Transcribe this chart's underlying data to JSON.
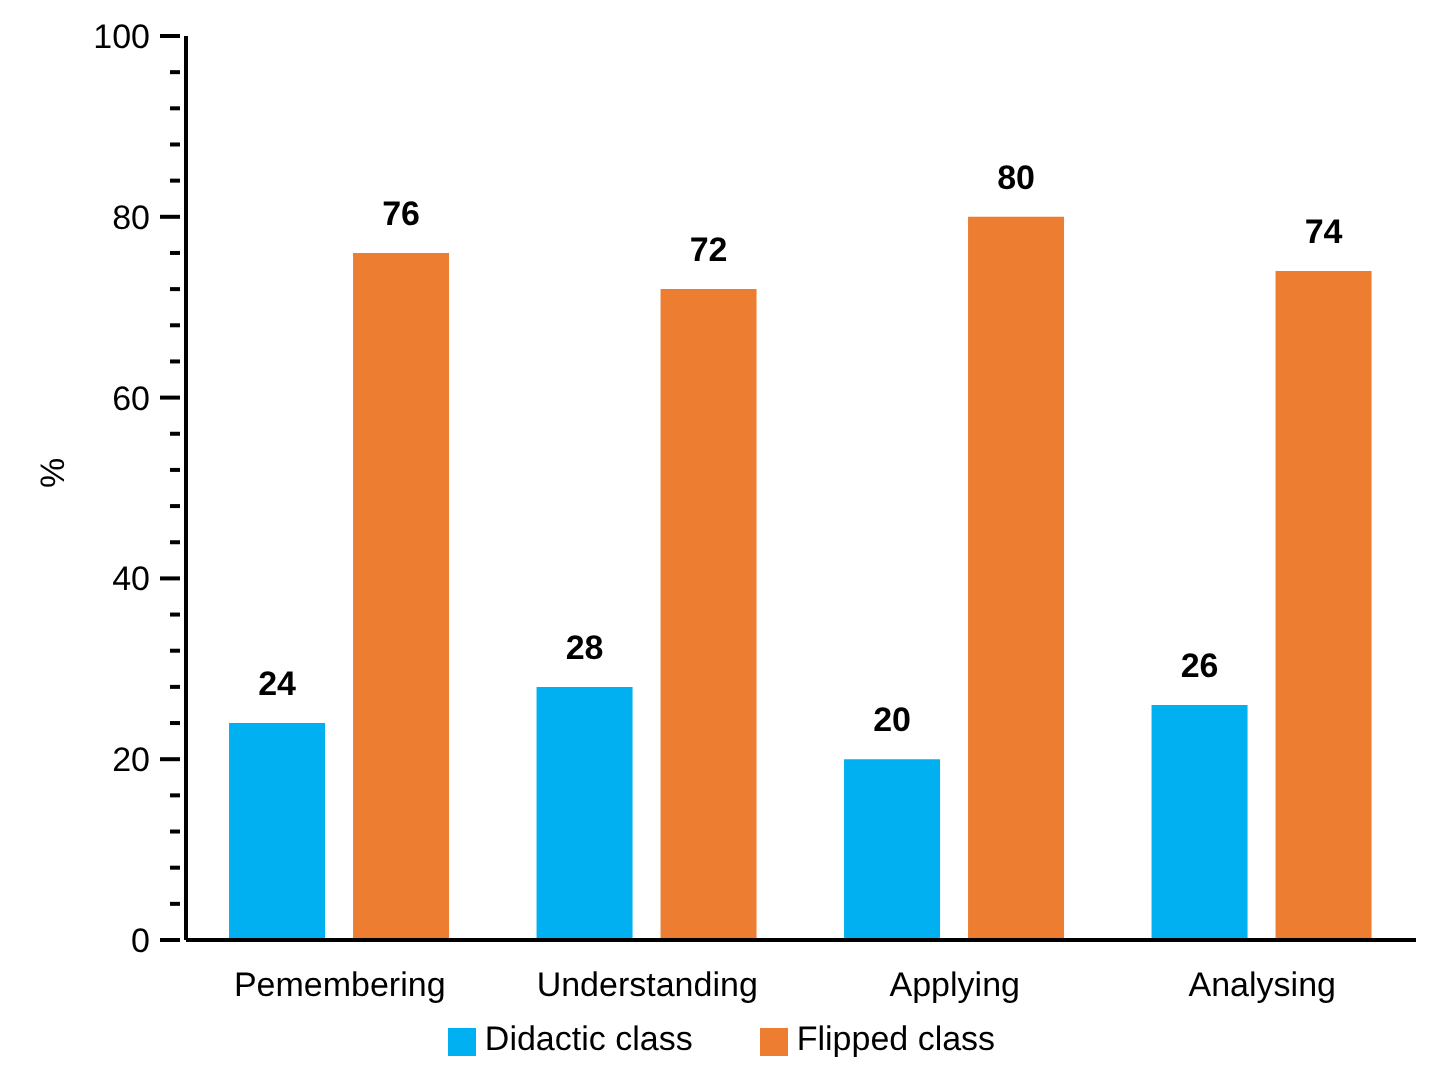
{
  "chart_data": {
    "type": "bar",
    "ylabel": "%",
    "categories": [
      "Pemembering",
      "Understanding",
      "Applying",
      "Analysing"
    ],
    "series": [
      {
        "name": "Didactic class",
        "color": "#00b0f0",
        "values": [
          24,
          28,
          20,
          26
        ]
      },
      {
        "name": "Flipped class",
        "color": "#ed7d31",
        "values": [
          76,
          72,
          80,
          74
        ]
      }
    ],
    "ylim": [
      0,
      100
    ],
    "yticks": [
      0,
      {
        "value": 4,
        "label": null
      },
      {
        "value": 8,
        "label": null
      },
      {
        "value": 12,
        "label": null
      },
      {
        "value": 16,
        "label": null
      },
      20,
      {
        "value": 24,
        "label": null
      },
      {
        "value": 28,
        "label": null
      },
      {
        "value": 32,
        "label": null
      },
      {
        "value": 36,
        "label": null
      },
      40,
      {
        "value": 44,
        "label": null
      },
      {
        "value": 48,
        "label": null
      },
      {
        "value": 52,
        "label": null
      },
      {
        "value": 56,
        "label": null
      },
      60,
      {
        "value": 64,
        "label": null
      },
      {
        "value": 68,
        "label": null
      },
      {
        "value": 72,
        "label": null
      },
      {
        "value": 76,
        "label": null
      },
      80,
      {
        "value": 84,
        "label": null
      },
      {
        "value": 88,
        "label": null
      },
      {
        "value": 92,
        "label": null
      },
      {
        "value": 96,
        "label": null
      },
      100
    ],
    "data_labels": true,
    "grid": false,
    "legend": "bottom"
  }
}
